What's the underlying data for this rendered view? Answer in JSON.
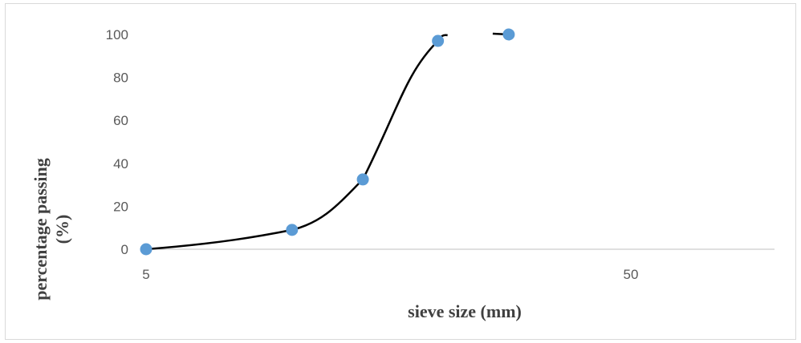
{
  "chart_data": {
    "type": "scatter",
    "title": "",
    "xlabel": "sieve size (mm)",
    "ylabel": "percentage passing (%)",
    "ylabel_lines": [
      "percentage passing",
      "(%)"
    ],
    "x_scale": "log",
    "xlim": [
      5,
      80
    ],
    "ylim": [
      0,
      100
    ],
    "x_ticks": [
      5,
      50
    ],
    "y_ticks": [
      0,
      20,
      40,
      60,
      80,
      100
    ],
    "grid": false,
    "legend": "none",
    "series": [
      {
        "x": [
          5,
          10,
          14,
          20,
          28
        ],
        "y": [
          0,
          9,
          32.5,
          97,
          100
        ],
        "marker_color": "#5b9bd5",
        "trendline": "smooth",
        "line_color": "#000000"
      }
    ]
  }
}
